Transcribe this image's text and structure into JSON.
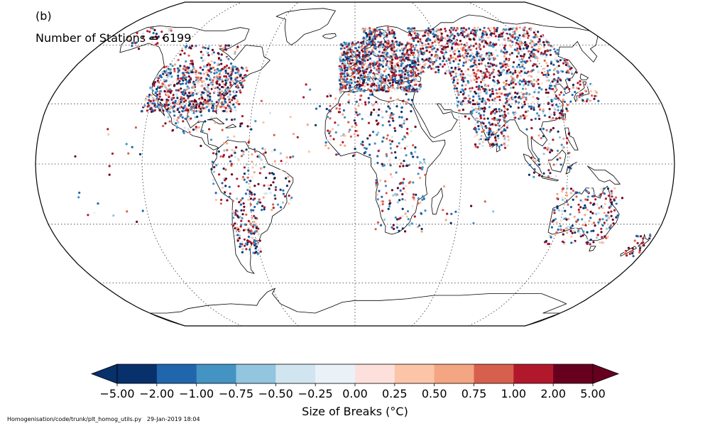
{
  "panel_label": "(b)",
  "station_count_label": "Number of Stations = 6199",
  "footer": {
    "path": "Homogenisation/code/trunk/plt_homog_utils.py",
    "timestamp": "29-Jan-2019 18:04"
  },
  "colorbar": {
    "title": "Size of Breaks (°C)",
    "tick_labels": [
      "−5.00",
      "−2.00",
      "−1.00",
      "−0.75",
      "−0.50",
      "−0.25",
      "0.00",
      "0.25",
      "0.50",
      "0.75",
      "1.00",
      "2.00",
      "5.00"
    ],
    "colors": [
      "#08306b",
      "#2166ac",
      "#4393c3",
      "#92c5de",
      "#d1e5f0",
      "#eaf2f8",
      "#fde0dc",
      "#fcc5a8",
      "#f4a582",
      "#d6604d",
      "#b2182b",
      "#67001f"
    ],
    "extend_low_color": "#08306b",
    "extend_high_color": "#67001f"
  },
  "map": {
    "projection": "Robinson",
    "graticule_latitudes": [
      -60,
      -30,
      0,
      30,
      60
    ],
    "graticule_longitudes": [
      -120,
      -60,
      0,
      60,
      120
    ],
    "ocean_color": "#ffffff",
    "coastline_color": "#000000"
  }
}
